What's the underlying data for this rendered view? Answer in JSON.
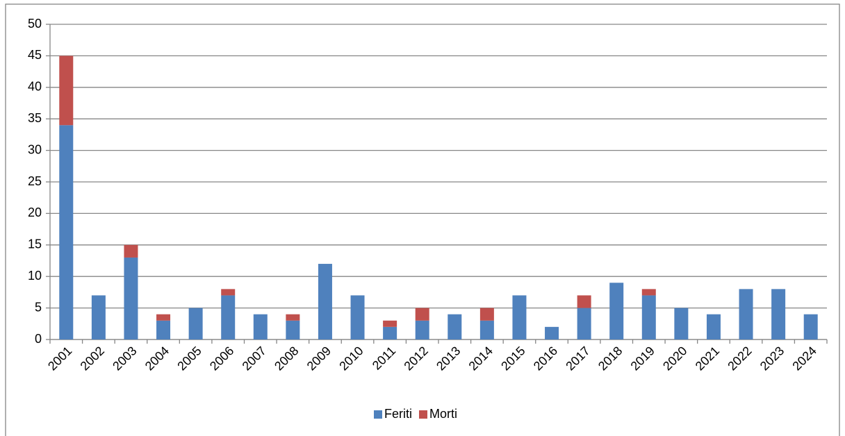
{
  "chart_data": {
    "type": "stacked_bar",
    "categories": [
      "2001",
      "2002",
      "2003",
      "2004",
      "2005",
      "2006",
      "2007",
      "2008",
      "2009",
      "2010",
      "2011",
      "2012",
      "2013",
      "2014",
      "2015",
      "2016",
      "2017",
      "2018",
      "2019",
      "2020",
      "2021",
      "2022",
      "2023",
      "2024"
    ],
    "series": [
      {
        "name": "Feriti",
        "color": "#4f81bd",
        "values": [
          34,
          7,
          13,
          3,
          5,
          7,
          4,
          3,
          12,
          7,
          2,
          3,
          4,
          3,
          7,
          2,
          5,
          9,
          7,
          5,
          4,
          8,
          8,
          4
        ]
      },
      {
        "name": "Morti",
        "color": "#c0504d",
        "values": [
          11,
          0,
          2,
          1,
          0,
          1,
          0,
          1,
          0,
          0,
          1,
          2,
          0,
          2,
          0,
          0,
          2,
          0,
          1,
          0,
          0,
          0,
          0,
          0
        ]
      }
    ],
    "ylim": [
      0,
      50
    ],
    "yticks": [
      0,
      5,
      10,
      15,
      20,
      25,
      30,
      35,
      40,
      45,
      50
    ],
    "grid": true,
    "legend": "bottom"
  }
}
